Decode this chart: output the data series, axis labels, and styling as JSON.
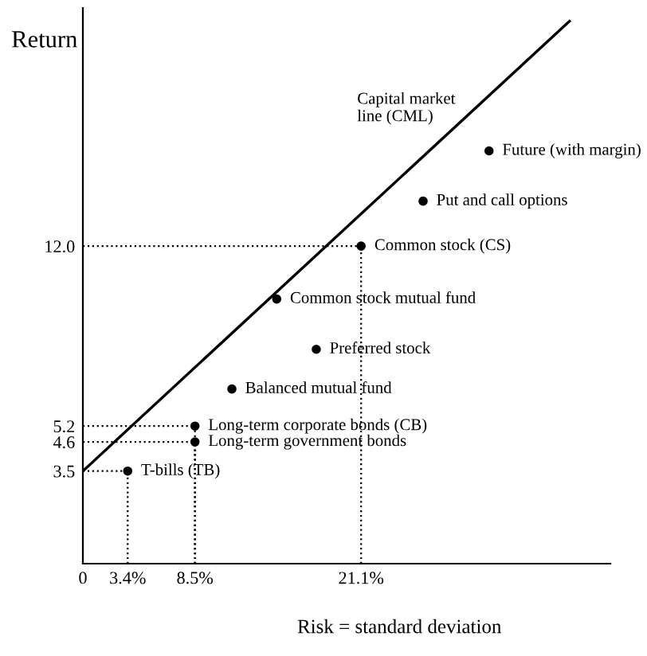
{
  "chart_data": {
    "type": "scatter",
    "xlabel": "Risk = standard deviation",
    "ylabel": "Return",
    "xlim": [
      0,
      40
    ],
    "ylim": [
      0,
      21
    ],
    "xticks": [
      0,
      {
        "value": 3.4,
        "label": "3.4%"
      },
      {
        "value": 8.5,
        "label": "8.5%"
      },
      {
        "value": 21.1,
        "label": "21.1%"
      }
    ],
    "yticks": [
      3.5,
      4.6,
      5.2,
      {
        "value": 12.0,
        "label": "12.0"
      }
    ],
    "series": [
      {
        "color": "#000000",
        "marker": "circle",
        "x": [
          3.4,
          8.5,
          8.5,
          11.3,
          14.7,
          17.7,
          21.1,
          25.8,
          30.8
        ],
        "values": [
          3.5,
          4.6,
          5.2,
          6.6,
          10.0,
          8.1,
          12.0,
          13.7,
          15.6
        ]
      },
      {
        "type": "line",
        "color": "#000000",
        "line_style": "solid",
        "x": [
          0,
          36.9
        ],
        "values": [
          3.5,
          20.5
        ]
      }
    ],
    "annotations": [
      {
        "text": "T-bills (TB)",
        "x": 3.4,
        "y": 3.5
      },
      {
        "text": "Long-term government bonds",
        "x": 8.5,
        "y": 4.6
      },
      {
        "text": "Long-term corporate bonds (CB)",
        "x": 8.5,
        "y": 5.2
      },
      {
        "text": "Balanced mutual fund",
        "x": 11.3,
        "y": 6.6
      },
      {
        "text": "Common stock mutual fund",
        "x": 14.7,
        "y": 10.0
      },
      {
        "text": "Preferred stock",
        "x": 17.7,
        "y": 8.1
      },
      {
        "text": "Common stock (CS)",
        "x": 21.1,
        "y": 12.0
      },
      {
        "text": "Put and call options",
        "x": 25.8,
        "y": 13.7
      },
      {
        "text": "Future (with margin)",
        "x": 30.8,
        "y": 15.6
      },
      "Capital market\nline (CML)"
    ],
    "grid": false,
    "legend": false
  }
}
